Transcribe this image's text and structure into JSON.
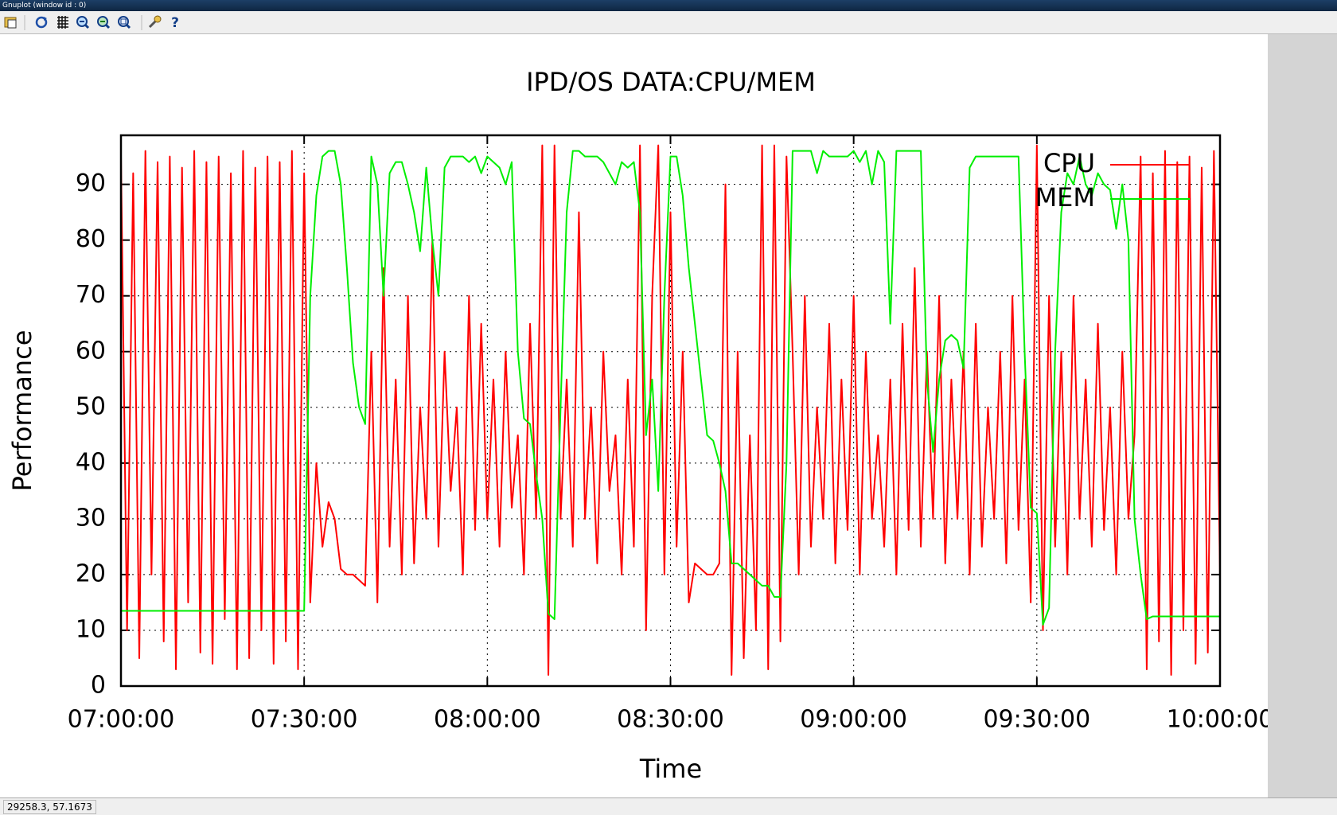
{
  "window": {
    "title": "Gnuplot (window id : 0)",
    "status": "29258.3,  57.1673"
  },
  "chart_data": {
    "type": "line",
    "title": "IPD/OS DATA:CPU/MEM",
    "xlabel": "Time",
    "ylabel": "Performance",
    "xlim": [
      "07:00:00",
      "10:00:00"
    ],
    "xticks": [
      "07:00:00",
      "07:30:00",
      "08:00:00",
      "08:30:00",
      "09:00:00",
      "09:30:00",
      "10:00:00"
    ],
    "ylim": [
      0,
      98.8
    ],
    "yticks": [
      0,
      10,
      20,
      30,
      40,
      50,
      60,
      70,
      80,
      90
    ],
    "grid": true,
    "legend": "upper-right",
    "x": [
      "07:00:00",
      "07:01:00",
      "07:02:00",
      "07:03:00",
      "07:04:00",
      "07:05:00",
      "07:06:00",
      "07:07:00",
      "07:08:00",
      "07:09:00",
      "07:10:00",
      "07:11:00",
      "07:12:00",
      "07:13:00",
      "07:14:00",
      "07:15:00",
      "07:16:00",
      "07:17:00",
      "07:18:00",
      "07:19:00",
      "07:20:00",
      "07:21:00",
      "07:22:00",
      "07:23:00",
      "07:24:00",
      "07:25:00",
      "07:26:00",
      "07:27:00",
      "07:28:00",
      "07:29:00",
      "07:30:00",
      "07:31:00",
      "07:32:00",
      "07:33:00",
      "07:34:00",
      "07:35:00",
      "07:36:00",
      "07:37:00",
      "07:38:00",
      "07:39:00",
      "07:40:00",
      "07:41:00",
      "07:42:00",
      "07:43:00",
      "07:44:00",
      "07:45:00",
      "07:46:00",
      "07:47:00",
      "07:48:00",
      "07:49:00",
      "07:50:00",
      "07:51:00",
      "07:52:00",
      "07:53:00",
      "07:54:00",
      "07:55:00",
      "07:56:00",
      "07:57:00",
      "07:58:00",
      "07:59:00",
      "08:00:00",
      "08:01:00",
      "08:02:00",
      "08:03:00",
      "08:04:00",
      "08:05:00",
      "08:06:00",
      "08:07:00",
      "08:08:00",
      "08:09:00",
      "08:10:00",
      "08:11:00",
      "08:12:00",
      "08:13:00",
      "08:14:00",
      "08:15:00",
      "08:16:00",
      "08:17:00",
      "08:18:00",
      "08:19:00",
      "08:20:00",
      "08:21:00",
      "08:22:00",
      "08:23:00",
      "08:24:00",
      "08:25:00",
      "08:26:00",
      "08:27:00",
      "08:28:00",
      "08:29:00",
      "08:30:00",
      "08:31:00",
      "08:32:00",
      "08:33:00",
      "08:34:00",
      "08:35:00",
      "08:36:00",
      "08:37:00",
      "08:38:00",
      "08:39:00",
      "08:40:00",
      "08:41:00",
      "08:42:00",
      "08:43:00",
      "08:44:00",
      "08:45:00",
      "08:46:00",
      "08:47:00",
      "08:48:00",
      "08:49:00",
      "08:50:00",
      "08:51:00",
      "08:52:00",
      "08:53:00",
      "08:54:00",
      "08:55:00",
      "08:56:00",
      "08:57:00",
      "08:58:00",
      "08:59:00",
      "09:00:00",
      "09:01:00",
      "09:02:00",
      "09:03:00",
      "09:04:00",
      "09:05:00",
      "09:06:00",
      "09:07:00",
      "09:08:00",
      "09:09:00",
      "09:10:00",
      "09:11:00",
      "09:12:00",
      "09:13:00",
      "09:14:00",
      "09:15:00",
      "09:16:00",
      "09:17:00",
      "09:18:00",
      "09:19:00",
      "09:20:00",
      "09:21:00",
      "09:22:00",
      "09:23:00",
      "09:24:00",
      "09:25:00",
      "09:26:00",
      "09:27:00",
      "09:28:00",
      "09:29:00",
      "09:30:00",
      "09:31:00",
      "09:32:00",
      "09:33:00",
      "09:34:00",
      "09:35:00",
      "09:36:00",
      "09:37:00",
      "09:38:00",
      "09:39:00",
      "09:40:00",
      "09:41:00",
      "09:42:00",
      "09:43:00",
      "09:44:00",
      "09:45:00",
      "09:46:00",
      "09:47:00",
      "09:48:00",
      "09:49:00",
      "09:50:00",
      "09:51:00",
      "09:52:00",
      "09:53:00",
      "09:54:00",
      "09:55:00",
      "09:56:00",
      "09:57:00",
      "09:58:00",
      "09:59:00",
      "10:00:00"
    ],
    "series": [
      {
        "name": "CPU",
        "color": "#ff0000",
        "values": [
          95,
          10,
          92,
          5,
          96,
          20,
          94,
          8,
          95,
          3,
          93,
          15,
          96,
          6,
          94,
          4,
          95,
          12,
          92,
          3,
          96,
          5,
          93,
          10,
          95,
          4,
          94,
          8,
          96,
          3,
          92,
          15,
          40,
          25,
          33,
          30,
          21,
          20,
          20,
          19,
          18,
          60,
          15,
          75,
          25,
          55,
          20,
          70,
          22,
          50,
          30,
          80,
          25,
          60,
          35,
          50,
          20,
          70,
          28,
          65,
          30,
          55,
          25,
          60,
          32,
          45,
          20,
          65,
          30,
          97,
          2,
          97,
          30,
          55,
          25,
          85,
          30,
          50,
          22,
          60,
          35,
          45,
          20,
          55,
          25,
          97,
          10,
          70,
          97,
          20,
          85,
          25,
          60,
          15,
          22,
          21,
          20,
          20,
          22,
          90,
          2,
          60,
          5,
          45,
          10,
          97,
          3,
          97,
          8,
          95,
          60,
          20,
          70,
          25,
          50,
          30,
          65,
          22,
          55,
          28,
          70,
          20,
          60,
          30,
          45,
          25,
          55,
          20,
          65,
          28,
          75,
          25,
          60,
          30,
          70,
          22,
          55,
          30,
          60,
          20,
          65,
          25,
          50,
          30,
          60,
          22,
          70,
          28,
          55,
          15,
          97,
          10,
          70,
          25,
          60,
          20,
          70,
          30,
          55,
          25,
          65,
          28,
          50,
          20,
          60,
          30,
          45,
          95,
          3,
          92,
          8,
          96,
          2,
          94,
          10,
          95,
          4,
          93,
          6,
          96,
          20
        ]
      },
      {
        "name": "MEM",
        "color": "#00ee00",
        "values": [
          13.5,
          13.5,
          13.5,
          13.5,
          13.5,
          13.5,
          13.5,
          13.5,
          13.5,
          13.5,
          13.5,
          13.5,
          13.5,
          13.5,
          13.5,
          13.5,
          13.5,
          13.5,
          13.5,
          13.5,
          13.5,
          13.5,
          13.5,
          13.5,
          13.5,
          13.5,
          13.5,
          13.5,
          13.5,
          13.5,
          13.5,
          70,
          88,
          95,
          96,
          96,
          90,
          75,
          58,
          50,
          47,
          95,
          90,
          70,
          92,
          94,
          94,
          90,
          85,
          78,
          93,
          80,
          70,
          93,
          95,
          95,
          95,
          94,
          95,
          92,
          95,
          94,
          93,
          90,
          94,
          60,
          48,
          47,
          38,
          30,
          13,
          12,
          50,
          85,
          96,
          96,
          95,
          95,
          95,
          94,
          92,
          90,
          94,
          93,
          94,
          85,
          45,
          55,
          35,
          70,
          95,
          95,
          88,
          75,
          65,
          55,
          45,
          44,
          40,
          35,
          22,
          22,
          21,
          20,
          19,
          18,
          18,
          16,
          16,
          40,
          96,
          96,
          96,
          96,
          92,
          96,
          95,
          95,
          95,
          95,
          96,
          94,
          96,
          90,
          96,
          94,
          65,
          96,
          96,
          96,
          96,
          96,
          55,
          42,
          55,
          62,
          63,
          62,
          57,
          93,
          95,
          95,
          95,
          95,
          95,
          95,
          95,
          95,
          60,
          32,
          31,
          11,
          14,
          60,
          85,
          92,
          90,
          95,
          90,
          88,
          92,
          90,
          89,
          82,
          90,
          80,
          30,
          20,
          12,
          12.5,
          12.5,
          12.5,
          12.5,
          12.5,
          12.5,
          12.5,
          12.5,
          12.5,
          12.5,
          12.5,
          12.5
        ]
      }
    ]
  }
}
